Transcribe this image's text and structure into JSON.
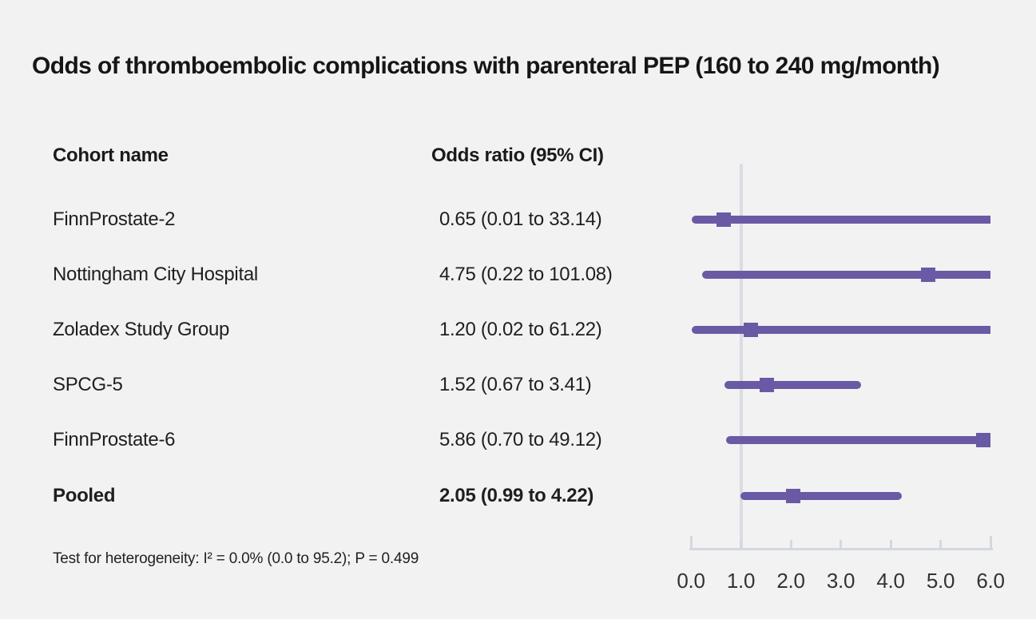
{
  "title": "Odds of thromboembolic complications with parenteral PEP (160 to 240 mg/month)",
  "table": {
    "col1_header": "Cohort name",
    "col2_header": "Odds ratio (95% CI)"
  },
  "footnote": "Test for heterogeneity: I² = 0.0% (0.0 to 95.2); P = 0.499",
  "colors": {
    "background": "#f2f2f2",
    "marker_purple": "#6a5aa5",
    "axis_gray": "#d4d8e0",
    "reference_line": "#d9dce3",
    "text": "#1a1a1a",
    "tick_text": "#333333"
  },
  "chart_data": {
    "type": "scatter",
    "variant": "forest-plot",
    "title": "Odds of thromboembolic complications with parenteral PEP (160 to 240 mg/month)",
    "xlabel": "Odds ratio",
    "xlim": [
      0.0,
      6.0
    ],
    "x_ticks": [
      0.0,
      1.0,
      2.0,
      3.0,
      4.0,
      5.0,
      6.0
    ],
    "x_tick_labels": [
      "0.0",
      "1.0",
      "2.0",
      "3.0",
      "4.0",
      "5.0",
      "6.0"
    ],
    "reference_line_x": 1.0,
    "grid": false,
    "legend": null,
    "rows": [
      {
        "label": "FinnProstate-2",
        "or": 0.65,
        "ci_low": 0.01,
        "ci_high": 33.14,
        "display": "0.65 (0.01 to 33.14)",
        "bold": false
      },
      {
        "label": "Nottingham City Hospital",
        "or": 4.75,
        "ci_low": 0.22,
        "ci_high": 101.08,
        "display": "4.75 (0.22 to 101.08)",
        "bold": false
      },
      {
        "label": "Zoladex Study Group",
        "or": 1.2,
        "ci_low": 0.02,
        "ci_high": 61.22,
        "display": "1.20 (0.02 to 61.22)",
        "bold": false
      },
      {
        "label": "SPCG-5",
        "or": 1.52,
        "ci_low": 0.67,
        "ci_high": 3.41,
        "display": "1.52 (0.67 to 3.41)",
        "bold": false
      },
      {
        "label": "FinnProstate-6",
        "or": 5.86,
        "ci_low": 0.7,
        "ci_high": 49.12,
        "display": "5.86 (0.70 to 49.12)",
        "bold": false
      },
      {
        "label": "Pooled",
        "or": 2.05,
        "ci_low": 0.99,
        "ci_high": 4.22,
        "display": "2.05 (0.99 to 4.22)",
        "bold": true
      }
    ]
  }
}
